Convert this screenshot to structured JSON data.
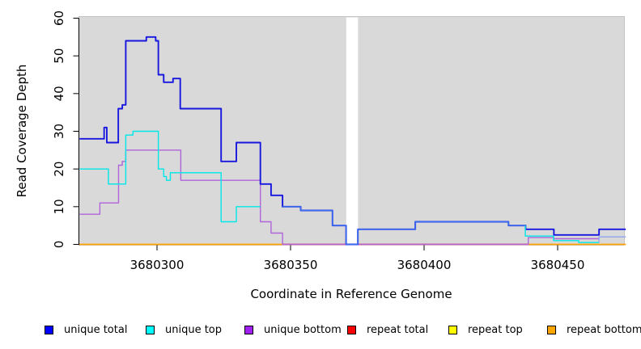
{
  "chart_data": {
    "type": "line",
    "subtype": "step-coverage-plot",
    "title": "",
    "xlabel": "Coordinate in Reference Genome",
    "ylabel": "Read Coverage Depth",
    "xlim": [
      3680271,
      3680475.5
    ],
    "ylim": [
      0,
      60
    ],
    "x_ticks": [
      3680300,
      3680350,
      3680400,
      3680450
    ],
    "y_ticks": [
      0,
      10,
      20,
      30,
      40,
      50,
      60
    ],
    "grid": false,
    "panel_background": "#d9d9d9",
    "panel_border": "#c3c3c3",
    "masked_gap_region": [
      3680370.85,
      3680375.25
    ],
    "legend_position": "bottom",
    "blend_colors": {
      "t": "#3b70f0",
      "b": "#93aaee"
    },
    "bottom_overlays": [
      {
        "x0": 3680347,
        "x1": 3680438.9,
        "value": 0,
        "color": "#cc3366"
      }
    ],
    "series": [
      {
        "name": "unique total",
        "legend_color": "#0000ff",
        "color": "#1717df",
        "width": 1.9,
        "steps": [
          [
            3680271,
            28
          ],
          [
            3680280.2,
            31
          ],
          [
            3680281.2,
            27
          ],
          [
            3680285.5,
            36
          ],
          [
            3680287,
            37
          ],
          [
            3680288.3,
            54
          ],
          [
            3680296,
            55
          ],
          [
            3680299.5,
            54
          ],
          [
            3680300.5,
            45
          ],
          [
            3680302.5,
            43
          ],
          [
            3680306,
            44
          ],
          [
            3680308.7,
            36
          ],
          [
            3680324,
            22
          ],
          [
            3680329.7,
            27
          ],
          [
            3680338.7,
            16
          ],
          [
            3680342.7,
            13
          ],
          [
            3680347,
            10
          ],
          [
            3680353.8,
            9
          ],
          [
            3680365.7,
            5
          ],
          [
            3680370.8,
            0
          ],
          [
            3680375.2,
            4
          ],
          [
            3680396.7,
            6
          ],
          [
            3680431.6,
            5
          ],
          [
            3680438,
            4
          ],
          [
            3680448.6,
            2.5
          ],
          [
            3680465.5,
            4
          ]
        ]
      },
      {
        "name": "unique top",
        "legend_color": "#00ffff",
        "color": "#00e8e8",
        "width": 1.4,
        "steps": [
          [
            3680271,
            20,
            "n"
          ],
          [
            3680281.8,
            16,
            "n"
          ],
          [
            3680288.3,
            29,
            "n"
          ],
          [
            3680291,
            30,
            "n"
          ],
          [
            3680300.5,
            20,
            "n"
          ],
          [
            3680302.5,
            18,
            "n"
          ],
          [
            3680303.5,
            17,
            "n"
          ],
          [
            3680305,
            19,
            "n"
          ],
          [
            3680324,
            6,
            "n"
          ],
          [
            3680329.7,
            10,
            "n"
          ],
          [
            3680338.7,
            16,
            "h"
          ],
          [
            3680342.7,
            13,
            "h"
          ],
          [
            3680347,
            10,
            "t"
          ],
          [
            3680353.8,
            9,
            "t"
          ],
          [
            3680365.7,
            5,
            "t"
          ],
          [
            3680370.8,
            0,
            "t"
          ],
          [
            3680375.2,
            4,
            "t"
          ],
          [
            3680396.7,
            6,
            "t"
          ],
          [
            3680431.6,
            5,
            "t"
          ],
          [
            3680437.9,
            2.2,
            "n"
          ],
          [
            3680448.5,
            1,
            "n"
          ],
          [
            3680457.9,
            0.5,
            "n"
          ],
          [
            3680465.5,
            2,
            "b"
          ]
        ]
      },
      {
        "name": "unique bottom",
        "legend_color": "#a020f0",
        "color": "#af64da",
        "width": 1.4,
        "steps": [
          [
            3680271,
            8
          ],
          [
            3680278.6,
            11
          ],
          [
            3680285.6,
            21
          ],
          [
            3680287,
            22
          ],
          [
            3680288.3,
            25
          ],
          [
            3680308.9,
            17
          ],
          [
            3680338.7,
            6
          ],
          [
            3680342.7,
            3
          ],
          [
            3680347,
            0
          ],
          [
            3680439,
            1.8
          ],
          [
            3680448.5,
            1.5
          ],
          [
            3680465.5,
            2
          ]
        ]
      },
      {
        "name": "repeat total",
        "legend_color": "#ff0000",
        "color": "#ff0000",
        "width": 1.2,
        "steps": [
          [
            3680271,
            0
          ]
        ]
      },
      {
        "name": "repeat top",
        "legend_color": "#ffff00",
        "color": "#ffff00",
        "width": 1.2,
        "steps": [
          [
            3680271,
            0
          ]
        ]
      },
      {
        "name": "repeat bottom",
        "legend_color": "#ffa500",
        "color": "#ffa500",
        "width": 1.6,
        "steps": [
          [
            3680271,
            0
          ]
        ]
      }
    ],
    "legend_layout_x": [
      55,
      180,
      302,
      429,
      554,
      676
    ]
  }
}
